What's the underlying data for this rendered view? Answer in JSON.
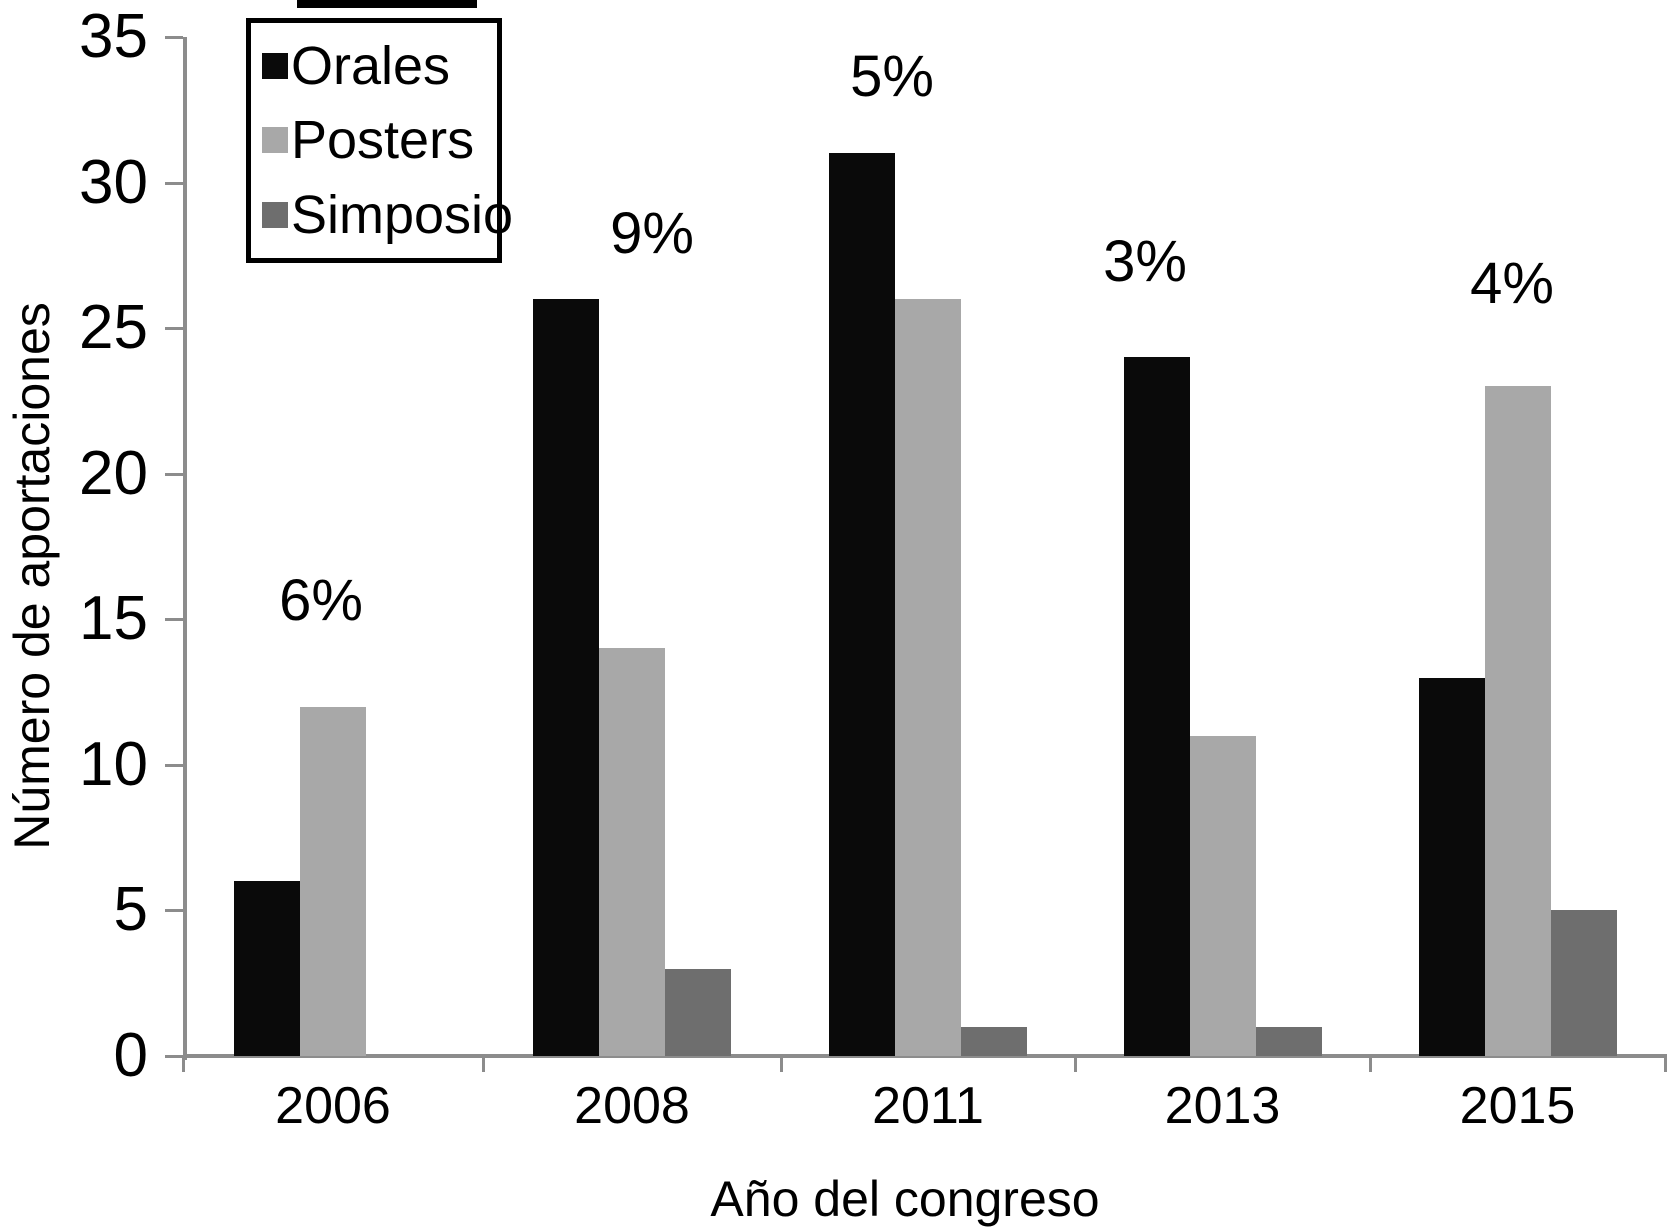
{
  "chart_data": {
    "type": "bar",
    "categories": [
      "2006",
      "2008",
      "2011",
      "2013",
      "2015"
    ],
    "series": [
      {
        "name": "Orales",
        "color": "#0a0a0a",
        "values": [
          6,
          26,
          31,
          24,
          13
        ]
      },
      {
        "name": "Posters",
        "color": "#a8a8a8",
        "values": [
          12,
          14,
          26,
          11,
          23
        ]
      },
      {
        "name": "Simposio",
        "color": "#6e6e6e",
        "values": [
          0,
          3,
          1,
          1,
          5
        ]
      }
    ],
    "group_percent_labels": [
      "6%",
      "9%",
      "5%",
      "3%",
      "4%"
    ],
    "xlabel": "Año del congreso",
    "ylabel": "Número de aportaciones",
    "ylim": [
      0,
      35
    ],
    "yticks": [
      0,
      5,
      10,
      15,
      20,
      25,
      30,
      35
    ],
    "grid": false,
    "legend_position": "top-left",
    "axis_color": "#8c8c8c"
  }
}
